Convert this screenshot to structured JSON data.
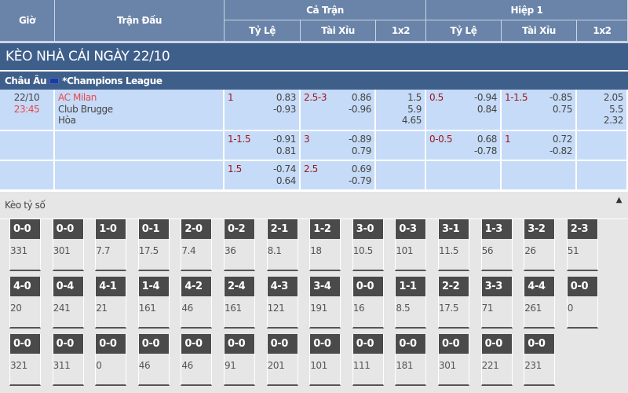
{
  "header": {
    "gio": "Giờ",
    "tran_dau": "Trận Đấu",
    "ca_tran": "Cả Trận",
    "hiep1": "Hiệp 1",
    "ty_le": "Tỷ Lệ",
    "tai_xiu": "Tài Xỉu",
    "x12": "1x2"
  },
  "title": "KÈO NHÀ CÁI NGÀY 22/10",
  "league": {
    "region": "Châu Âu",
    "name": "*Champions League",
    "flag": "eu-flag-icon"
  },
  "match": {
    "date": "22/10",
    "time": "23:45",
    "home": "AC Milan",
    "away": "Club Brugge",
    "draw": "Hòa"
  },
  "rows": [
    {
      "ft_hdp": "1",
      "ft_hdp_v": [
        "0.83",
        "-0.93"
      ],
      "ft_ou": "2.5-3",
      "ft_ou_v": [
        "0.86",
        "-0.96"
      ],
      "ft_1x2": [
        "1.5",
        "5.9",
        "4.65"
      ],
      "h1_hdp": "0.5",
      "h1_hdp_v": [
        "-0.94",
        "0.84"
      ],
      "h1_ou": "1-1.5",
      "h1_ou_v": [
        "-0.85",
        "0.75"
      ],
      "h1_1x2": [
        "2.05",
        "5.5",
        "2.32"
      ]
    },
    {
      "ft_hdp": "1-1.5",
      "ft_hdp_v": [
        "-0.91",
        "0.81"
      ],
      "ft_ou": "3",
      "ft_ou_v": [
        "-0.89",
        "0.79"
      ],
      "ft_1x2": [],
      "h1_hdp": "0-0.5",
      "h1_hdp_v": [
        "0.68",
        "-0.78"
      ],
      "h1_ou": "1",
      "h1_ou_v": [
        "0.72",
        "-0.82"
      ],
      "h1_1x2": []
    },
    {
      "ft_hdp": "1.5",
      "ft_hdp_v": [
        "-0.74",
        "0.64"
      ],
      "ft_ou": "2.5",
      "ft_ou_v": [
        "0.69",
        "-0.79"
      ],
      "ft_1x2": [],
      "h1_hdp": "",
      "h1_hdp_v": [],
      "h1_ou": "",
      "h1_ou_v": [],
      "h1_1x2": []
    }
  ],
  "correct_score": {
    "label": "Kèo tỷ số",
    "toggle_icon": "triangle-up-icon",
    "rows": [
      [
        [
          "0-0",
          "331"
        ],
        [
          "0-0",
          "301"
        ],
        [
          "1-0",
          "7.7"
        ],
        [
          "0-1",
          "17.5"
        ],
        [
          "2-0",
          "7.4"
        ],
        [
          "0-2",
          "36"
        ],
        [
          "2-1",
          "8.1"
        ],
        [
          "1-2",
          "18"
        ],
        [
          "3-0",
          "10.5"
        ],
        [
          "0-3",
          "101"
        ],
        [
          "3-1",
          "11.5"
        ],
        [
          "1-3",
          "56"
        ],
        [
          "3-2",
          "26"
        ],
        [
          "2-3",
          "51"
        ]
      ],
      [
        [
          "4-0",
          "20"
        ],
        [
          "0-4",
          "241"
        ],
        [
          "4-1",
          "21"
        ],
        [
          "1-4",
          "161"
        ],
        [
          "4-2",
          "46"
        ],
        [
          "2-4",
          "161"
        ],
        [
          "4-3",
          "121"
        ],
        [
          "3-4",
          "191"
        ],
        [
          "0-0",
          "16"
        ],
        [
          "1-1",
          "8.5"
        ],
        [
          "2-2",
          "17.5"
        ],
        [
          "3-3",
          "71"
        ],
        [
          "4-4",
          "261"
        ],
        [
          "0-0",
          "0"
        ]
      ],
      [
        [
          "0-0",
          "321"
        ],
        [
          "0-0",
          "311"
        ],
        [
          "0-0",
          "0"
        ],
        [
          "0-0",
          "46"
        ],
        [
          "0-0",
          "46"
        ],
        [
          "0-0",
          "91"
        ],
        [
          "0-0",
          "201"
        ],
        [
          "0-0",
          "101"
        ],
        [
          "0-0",
          "111"
        ],
        [
          "0-0",
          "181"
        ],
        [
          "0-0",
          "301"
        ],
        [
          "0-0",
          "221"
        ],
        [
          "0-0",
          "231"
        ]
      ]
    ]
  }
}
